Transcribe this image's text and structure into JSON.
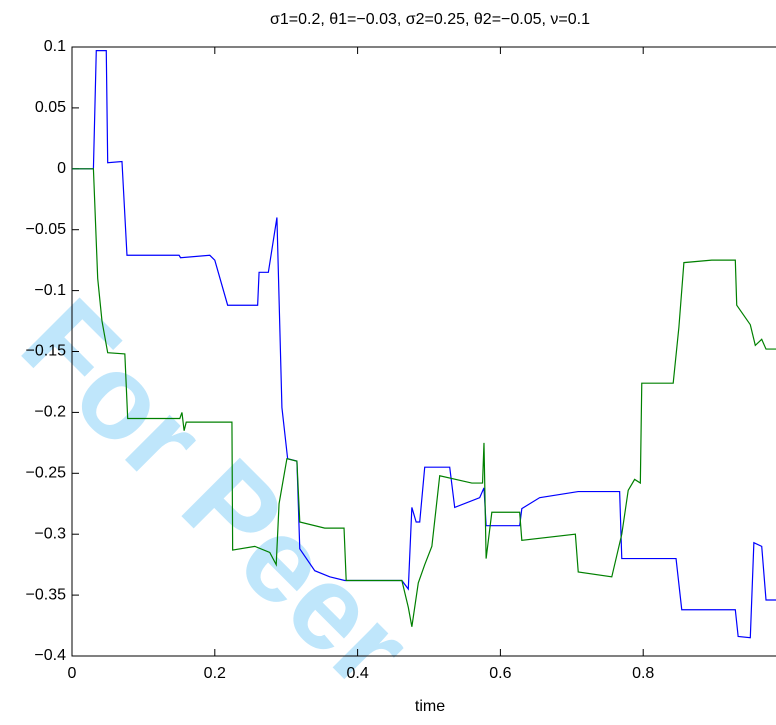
{
  "chart_data": {
    "type": "line",
    "title": "σ1=0.2, θ1=−0.03, σ2=0.25, θ2=−0.05, ν=0.1",
    "x_label": "time",
    "watermark": "For Peer",
    "xlim": [
      0,
      1
    ],
    "ylim": [
      -0.4,
      0.1
    ],
    "xticks": [
      0,
      0.2,
      0.4,
      0.6,
      0.8,
      1
    ],
    "yticks": [
      {
        "value": -0.4,
        "label": "−0.4"
      },
      {
        "value": -0.35,
        "label": "−0.35"
      },
      {
        "value": -0.3,
        "label": "−0.3"
      },
      {
        "value": -0.25,
        "label": "−0.25"
      },
      {
        "value": -0.2,
        "label": "−0.2"
      },
      {
        "value": -0.15,
        "label": "−0.15"
      },
      {
        "value": -0.1,
        "label": "−0.1"
      },
      {
        "value": -0.05,
        "label": "−0.05"
      },
      0,
      0.05,
      0.1
    ],
    "series": [
      {
        "color": "#0000ff",
        "x": [
          0,
          0.03,
          0.034,
          0.048,
          0.05,
          0.07,
          0.077,
          0.15,
          0.152,
          0.193,
          0.2,
          0.218,
          0.26,
          0.262,
          0.275,
          0.287,
          0.294,
          0.302,
          0.315,
          0.319,
          0.34,
          0.361,
          0.382,
          0.462,
          0.471,
          0.476,
          0.482,
          0.487,
          0.494,
          0.529,
          0.536,
          0.571,
          0.577,
          0.58,
          0.627,
          0.63,
          0.655,
          0.709,
          0.767,
          0.77,
          0.846,
          0.854,
          0.929,
          0.933,
          0.95,
          0.955,
          0.966,
          0.972,
          0.986
        ],
        "values": [
          0,
          0,
          0.097,
          0.097,
          0.005,
          0.006,
          -0.071,
          -0.071,
          -0.073,
          -0.071,
          -0.075,
          -0.112,
          -0.112,
          -0.085,
          -0.085,
          -0.04,
          -0.196,
          -0.238,
          -0.24,
          -0.312,
          -0.33,
          -0.335,
          -0.338,
          -0.338,
          -0.345,
          -0.278,
          -0.29,
          -0.29,
          -0.245,
          -0.245,
          -0.278,
          -0.27,
          -0.262,
          -0.293,
          -0.293,
          -0.279,
          -0.27,
          -0.265,
          -0.265,
          -0.32,
          -0.32,
          -0.362,
          -0.362,
          -0.384,
          -0.385,
          -0.307,
          -0.31,
          -0.354,
          -0.354
        ]
      },
      {
        "color": "#008000",
        "x": [
          0,
          0.03,
          0.036,
          0.042,
          0.05,
          0.074,
          0.078,
          0.151,
          0.154,
          0.157,
          0.16,
          0.224,
          0.225,
          0.256,
          0.277,
          0.286,
          0.29,
          0.301,
          0.315,
          0.319,
          0.354,
          0.381,
          0.384,
          0.462,
          0.471,
          0.476,
          0.485,
          0.494,
          0.504,
          0.515,
          0.56,
          0.575,
          0.577,
          0.58,
          0.588,
          0.627,
          0.63,
          0.705,
          0.709,
          0.756,
          0.77,
          0.779,
          0.788,
          0.796,
          0.798,
          0.842,
          0.85,
          0.857,
          0.896,
          0.929,
          0.931,
          0.95,
          0.957,
          0.966,
          0.972,
          0.986
        ],
        "values": [
          0,
          0,
          -0.09,
          -0.125,
          -0.151,
          -0.152,
          -0.205,
          -0.205,
          -0.2,
          -0.215,
          -0.208,
          -0.208,
          -0.313,
          -0.31,
          -0.315,
          -0.325,
          -0.275,
          -0.238,
          -0.24,
          -0.29,
          -0.295,
          -0.295,
          -0.338,
          -0.338,
          -0.36,
          -0.376,
          -0.34,
          -0.325,
          -0.31,
          -0.252,
          -0.258,
          -0.258,
          -0.225,
          -0.32,
          -0.282,
          -0.282,
          -0.305,
          -0.3,
          -0.331,
          -0.335,
          -0.3,
          -0.264,
          -0.255,
          -0.258,
          -0.176,
          -0.176,
          -0.13,
          -0.077,
          -0.075,
          -0.075,
          -0.112,
          -0.128,
          -0.145,
          -0.14,
          -0.148,
          -0.148
        ]
      }
    ]
  }
}
